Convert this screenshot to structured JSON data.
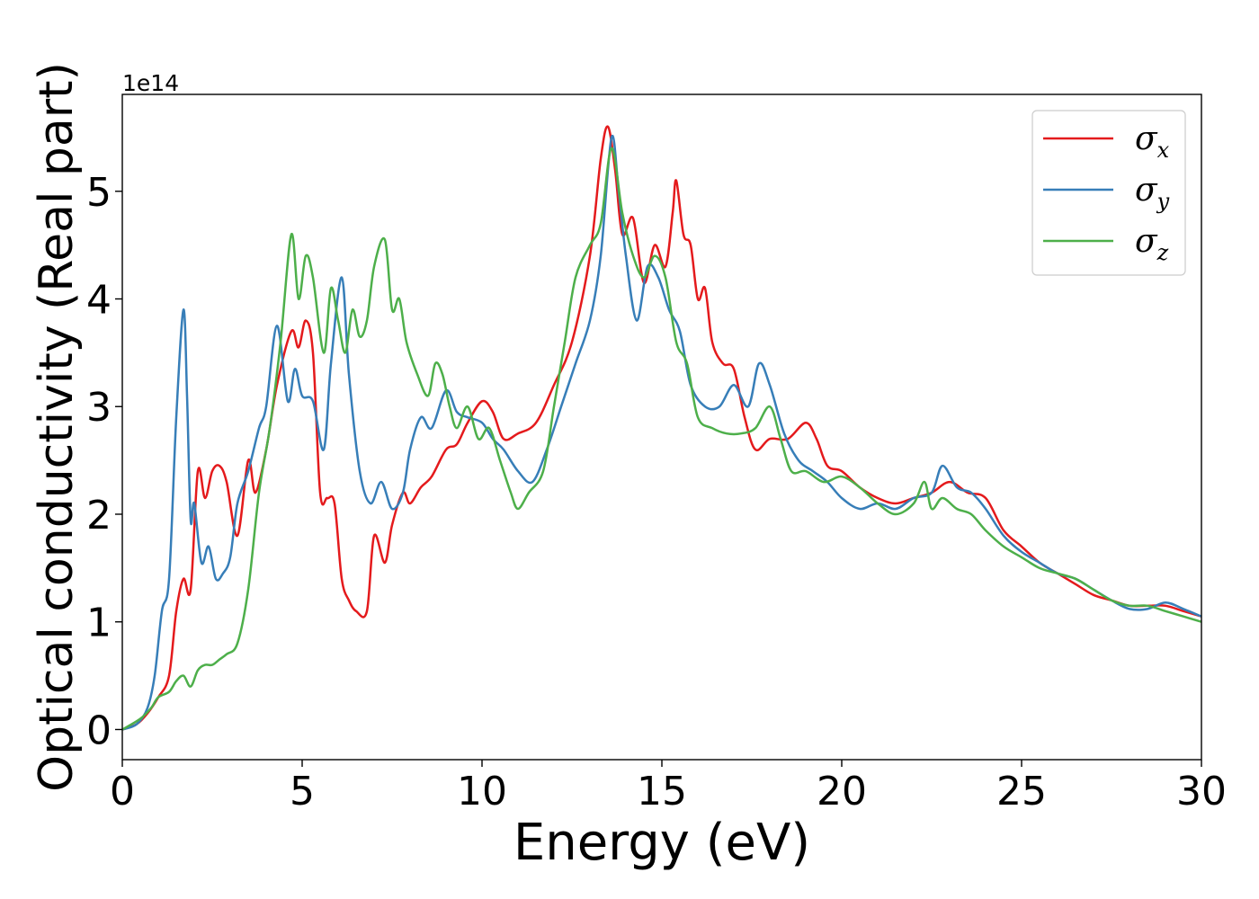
{
  "chart_data": {
    "type": "line",
    "xlabel": "Energy (eV)",
    "ylabel": "Optical conductivity (Real part)",
    "y_offset_label": "1e14",
    "xlim": [
      0,
      30
    ],
    "ylim": [
      -0.28,
      5.9
    ],
    "x_ticks": [
      0,
      5,
      10,
      15,
      20,
      25,
      30
    ],
    "x_tick_labels": [
      "0",
      "5",
      "10",
      "15",
      "20",
      "25",
      "30"
    ],
    "y_ticks": [
      0,
      1,
      2,
      3,
      4,
      5
    ],
    "y_tick_labels": [
      "0",
      "1",
      "2",
      "3",
      "4",
      "5"
    ],
    "grid": false,
    "legend_position": "top-right",
    "series": [
      {
        "name": "σx",
        "symbol": "σ",
        "subscript": "x",
        "color": "#e41a1c",
        "x": [
          0.0,
          0.4,
          0.7,
          1.0,
          1.3,
          1.5,
          1.7,
          1.9,
          2.1,
          2.3,
          2.5,
          2.7,
          2.9,
          3.2,
          3.5,
          3.7,
          4.0,
          4.3,
          4.7,
          4.9,
          5.1,
          5.3,
          5.5,
          5.7,
          5.9,
          6.1,
          6.3,
          6.5,
          6.8,
          7.0,
          7.3,
          7.5,
          7.8,
          8.0,
          8.3,
          8.6,
          9.0,
          9.3,
          9.6,
          10.0,
          10.3,
          10.6,
          11.0,
          11.5,
          12.0,
          12.5,
          13.0,
          13.3,
          13.5,
          13.7,
          13.9,
          14.2,
          14.5,
          14.8,
          15.1,
          15.3,
          15.4,
          15.6,
          15.8,
          16.0,
          16.2,
          16.4,
          16.7,
          17.0,
          17.3,
          17.6,
          18.0,
          18.5,
          19.0,
          19.3,
          19.6,
          20.0,
          20.5,
          21.0,
          21.5,
          22.0,
          22.5,
          23.0,
          23.5,
          24.0,
          24.5,
          25.0,
          25.5,
          26.0,
          26.5,
          27.0,
          27.5,
          28.0,
          28.5,
          29.0,
          29.5,
          30.0
        ],
        "y": [
          0,
          0.05,
          0.15,
          0.3,
          0.5,
          1.1,
          1.4,
          1.3,
          2.4,
          2.15,
          2.4,
          2.45,
          2.3,
          1.8,
          2.5,
          2.2,
          2.6,
          3.2,
          3.7,
          3.55,
          3.8,
          3.5,
          2.2,
          2.15,
          2.1,
          1.4,
          1.2,
          1.1,
          1.1,
          1.8,
          1.55,
          1.9,
          2.2,
          2.1,
          2.25,
          2.35,
          2.6,
          2.65,
          2.85,
          3.05,
          2.95,
          2.7,
          2.75,
          2.85,
          3.2,
          3.6,
          4.4,
          5.3,
          5.6,
          5.2,
          4.6,
          4.75,
          4.15,
          4.5,
          4.3,
          4.8,
          5.1,
          4.6,
          4.5,
          4.0,
          4.1,
          3.6,
          3.4,
          3.35,
          2.9,
          2.6,
          2.7,
          2.7,
          2.85,
          2.7,
          2.45,
          2.4,
          2.25,
          2.15,
          2.1,
          2.15,
          2.2,
          2.3,
          2.2,
          2.15,
          1.85,
          1.7,
          1.55,
          1.45,
          1.35,
          1.25,
          1.2,
          1.15,
          1.15,
          1.15,
          1.1,
          1.05
        ]
      },
      {
        "name": "σy",
        "symbol": "σ",
        "subscript": "y",
        "color": "#377eb8",
        "x": [
          0.0,
          0.4,
          0.7,
          0.9,
          1.1,
          1.3,
          1.5,
          1.7,
          1.8,
          1.9,
          2.0,
          2.2,
          2.4,
          2.6,
          2.8,
          3.0,
          3.2,
          3.5,
          3.8,
          4.0,
          4.3,
          4.6,
          4.8,
          5.0,
          5.3,
          5.6,
          5.8,
          6.1,
          6.3,
          6.6,
          6.9,
          7.2,
          7.5,
          7.8,
          8.0,
          8.3,
          8.6,
          9.0,
          9.3,
          9.6,
          10.0,
          10.3,
          10.6,
          11.0,
          11.4,
          11.8,
          12.2,
          12.6,
          13.0,
          13.3,
          13.6,
          13.8,
          14.0,
          14.3,
          14.6,
          14.9,
          15.2,
          15.5,
          15.8,
          16.2,
          16.6,
          17.0,
          17.4,
          17.7,
          18.0,
          18.4,
          18.8,
          19.2,
          19.6,
          20.0,
          20.5,
          21.0,
          21.5,
          22.0,
          22.5,
          22.8,
          23.2,
          23.6,
          24.0,
          24.5,
          25.0,
          25.5,
          26.0,
          26.5,
          27.0,
          27.5,
          28.0,
          28.5,
          29.0,
          29.5,
          30.0
        ],
        "y": [
          0,
          0.05,
          0.2,
          0.5,
          1.1,
          1.4,
          2.9,
          3.9,
          3.1,
          1.95,
          2.1,
          1.55,
          1.7,
          1.4,
          1.45,
          1.6,
          2.1,
          2.4,
          2.8,
          3.0,
          3.75,
          3.05,
          3.35,
          3.1,
          3.05,
          2.6,
          3.4,
          4.2,
          3.3,
          2.4,
          2.1,
          2.3,
          2.05,
          2.2,
          2.6,
          2.9,
          2.8,
          3.15,
          2.95,
          2.9,
          2.85,
          2.7,
          2.6,
          2.4,
          2.3,
          2.6,
          3.0,
          3.4,
          3.8,
          4.4,
          5.5,
          5.0,
          4.4,
          3.8,
          4.3,
          4.2,
          3.9,
          3.7,
          3.2,
          3.0,
          3.0,
          3.2,
          3.0,
          3.4,
          3.2,
          2.75,
          2.5,
          2.4,
          2.3,
          2.15,
          2.05,
          2.1,
          2.05,
          2.15,
          2.2,
          2.45,
          2.25,
          2.2,
          2.05,
          1.8,
          1.65,
          1.55,
          1.45,
          1.4,
          1.3,
          1.2,
          1.12,
          1.12,
          1.18,
          1.12,
          1.05
        ]
      },
      {
        "name": "σz",
        "symbol": "σ",
        "subscript": "z",
        "color": "#4daf4a",
        "x": [
          0.0,
          0.5,
          0.8,
          1.0,
          1.3,
          1.5,
          1.7,
          1.9,
          2.1,
          2.3,
          2.5,
          2.7,
          2.9,
          3.2,
          3.5,
          3.8,
          4.1,
          4.4,
          4.7,
          4.9,
          5.1,
          5.3,
          5.6,
          5.8,
          6.0,
          6.2,
          6.4,
          6.6,
          6.8,
          7.0,
          7.3,
          7.5,
          7.7,
          7.9,
          8.2,
          8.5,
          8.7,
          8.9,
          9.1,
          9.3,
          9.6,
          9.9,
          10.2,
          10.5,
          10.8,
          11.0,
          11.3,
          11.7,
          12.0,
          12.3,
          12.6,
          13.0,
          13.3,
          13.6,
          13.9,
          14.2,
          14.5,
          14.8,
          15.1,
          15.4,
          15.7,
          16.0,
          16.4,
          16.8,
          17.2,
          17.6,
          18.0,
          18.3,
          18.6,
          19.0,
          19.5,
          20.0,
          20.5,
          21.0,
          21.5,
          22.0,
          22.3,
          22.5,
          22.8,
          23.2,
          23.6,
          24.0,
          24.5,
          25.0,
          25.5,
          26.0,
          26.5,
          27.0,
          27.5,
          28.0,
          28.5,
          29.0,
          29.5,
          30.0
        ],
        "y": [
          0,
          0.1,
          0.2,
          0.3,
          0.35,
          0.45,
          0.5,
          0.4,
          0.55,
          0.6,
          0.6,
          0.65,
          0.7,
          0.8,
          1.3,
          2.2,
          2.8,
          3.6,
          4.6,
          4.0,
          4.4,
          4.2,
          3.5,
          4.1,
          3.8,
          3.5,
          3.9,
          3.65,
          3.8,
          4.3,
          4.55,
          3.9,
          4.0,
          3.6,
          3.3,
          3.1,
          3.4,
          3.3,
          3.0,
          2.8,
          3.0,
          2.7,
          2.8,
          2.5,
          2.2,
          2.05,
          2.2,
          2.4,
          3.0,
          3.6,
          4.2,
          4.5,
          4.7,
          5.4,
          4.8,
          4.4,
          4.2,
          4.4,
          4.2,
          3.6,
          3.4,
          2.9,
          2.8,
          2.75,
          2.75,
          2.8,
          3.0,
          2.7,
          2.4,
          2.4,
          2.3,
          2.35,
          2.25,
          2.1,
          2.0,
          2.1,
          2.3,
          2.05,
          2.15,
          2.05,
          2.0,
          1.85,
          1.7,
          1.6,
          1.5,
          1.45,
          1.4,
          1.3,
          1.2,
          1.15,
          1.15,
          1.1,
          1.05,
          1.0
        ]
      }
    ]
  }
}
